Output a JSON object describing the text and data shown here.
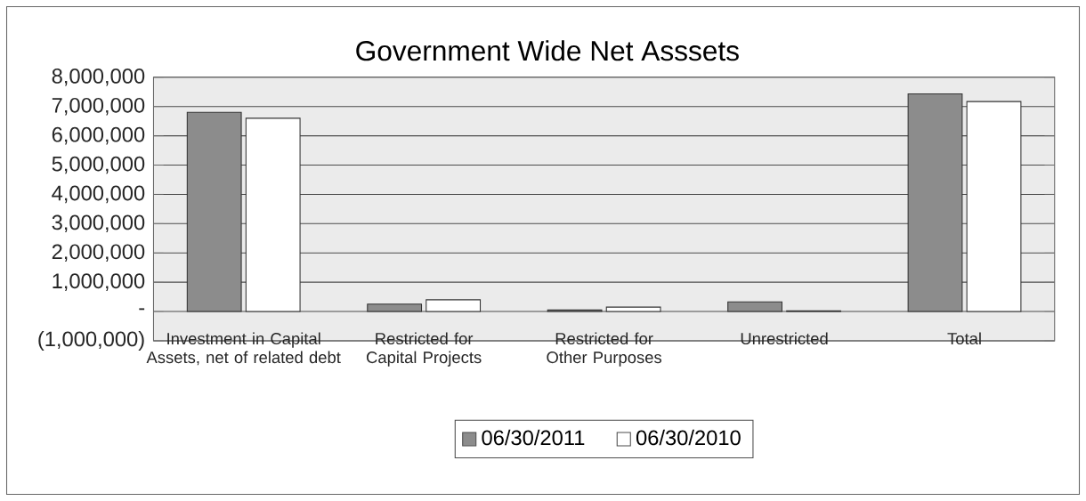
{
  "chart_data": {
    "type": "bar",
    "title": "Government Wide Net Asssets",
    "categories": [
      "Investment in Capital Assets, net of related debt",
      "Restricted for Capital Projects",
      "Restricted for Other Purposes",
      "Unrestricted",
      "Total"
    ],
    "series": [
      {
        "name": "06/30/2011",
        "color": "#8c8c8c",
        "values": [
          6800000,
          250000,
          50000,
          330000,
          7430000
        ]
      },
      {
        "name": "06/30/2010",
        "color": "#ffffff",
        "values": [
          6600000,
          400000,
          150000,
          20000,
          7170000
        ]
      }
    ],
    "ylim": [
      -1000000,
      8000000
    ],
    "yticks": [
      {
        "value": -1000000,
        "label": "(1,000,000)"
      },
      {
        "value": 0,
        "label": "-"
      },
      {
        "value": 1000000,
        "label": "1,000,000"
      },
      {
        "value": 2000000,
        "label": "2,000,000"
      },
      {
        "value": 3000000,
        "label": "3,000,000"
      },
      {
        "value": 4000000,
        "label": "4,000,000"
      },
      {
        "value": 5000000,
        "label": "5,000,000"
      },
      {
        "value": 6000000,
        "label": "6,000,000"
      },
      {
        "value": 7000000,
        "label": "7,000,000"
      },
      {
        "value": 8000000,
        "label": "8,000,000"
      }
    ],
    "grid": "y",
    "legend": "bottom"
  }
}
